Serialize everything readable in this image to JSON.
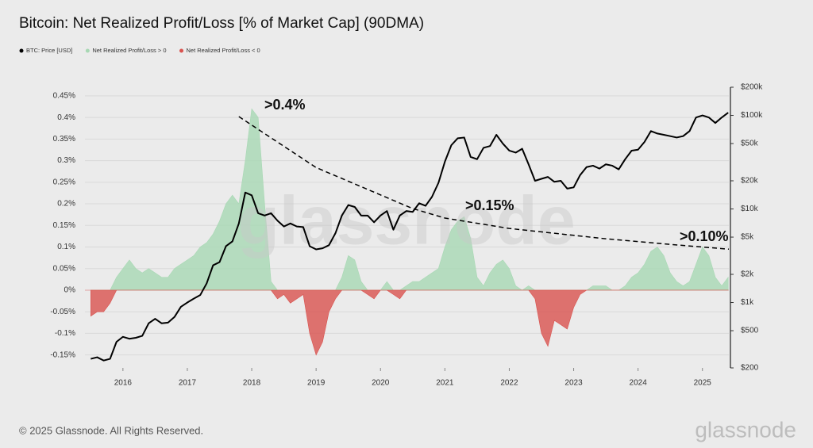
{
  "chart_data": {
    "type": "line",
    "title": "Bitcoin: Net Realized Profit/Loss [% of Market Cap] (90DMA)",
    "watermark": "glassnode",
    "annotations": [
      ">0.4%",
      ">0.15%",
      ">0.10%"
    ],
    "xlim": [
      2015.41,
      2025.41
    ],
    "xticks": [
      2016,
      2017,
      2018,
      2019,
      2020,
      2021,
      2022,
      2023,
      2024,
      2025
    ],
    "ylim": [
      -0.18,
      0.47
    ],
    "yticks": [
      {
        "value": -0.15,
        "label": "-0.15%"
      },
      {
        "value": -0.1,
        "label": "-0.1%"
      },
      {
        "value": -0.05,
        "label": "-0.05%"
      },
      {
        "value": 0,
        "label": "0%"
      },
      {
        "value": 0.05,
        "label": "0.05%"
      },
      {
        "value": 0.1,
        "label": "0.1%"
      },
      {
        "value": 0.15,
        "label": "0.15%"
      },
      {
        "value": 0.2,
        "label": "0.2%"
      },
      {
        "value": 0.25,
        "label": "0.25%"
      },
      {
        "value": 0.3,
        "label": "0.3%"
      },
      {
        "value": 0.35,
        "label": "0.35%"
      },
      {
        "value": 0.4,
        "label": "0.4%"
      },
      {
        "value": 0.45,
        "label": "0.45%"
      }
    ],
    "y2lim": [
      200,
      200000
    ],
    "y2scale": "log",
    "y2ticks": [
      {
        "value": 200,
        "label": "$200"
      },
      {
        "value": 500,
        "label": "$500"
      },
      {
        "value": 1000,
        "label": "$1k"
      },
      {
        "value": 2000,
        "label": "$2k"
      },
      {
        "value": 5000,
        "label": "$5k"
      },
      {
        "value": 10000,
        "label": "$10k"
      },
      {
        "value": 20000,
        "label": "$20k"
      },
      {
        "value": 50000,
        "label": "$50k"
      },
      {
        "value": 100000,
        "label": "$100k"
      },
      {
        "value": 200000,
        "label": "$200k"
      }
    ],
    "grid": true,
    "legend": "top-left",
    "x": [
      2015.5,
      2015.6,
      2015.7,
      2015.8,
      2015.9,
      2016.0,
      2016.1,
      2016.2,
      2016.3,
      2016.4,
      2016.5,
      2016.6,
      2016.7,
      2016.8,
      2016.9,
      2017.0,
      2017.1,
      2017.2,
      2017.3,
      2017.4,
      2017.5,
      2017.6,
      2017.7,
      2017.8,
      2017.9,
      2018.0,
      2018.1,
      2018.2,
      2018.3,
      2018.4,
      2018.5,
      2018.6,
      2018.7,
      2018.8,
      2018.9,
      2019.0,
      2019.1,
      2019.2,
      2019.3,
      2019.4,
      2019.5,
      2019.6,
      2019.7,
      2019.8,
      2019.9,
      2020.0,
      2020.1,
      2020.2,
      2020.3,
      2020.4,
      2020.5,
      2020.6,
      2020.7,
      2020.8,
      2020.9,
      2021.0,
      2021.1,
      2021.2,
      2021.3,
      2021.4,
      2021.5,
      2021.6,
      2021.7,
      2021.8,
      2021.9,
      2022.0,
      2022.1,
      2022.2,
      2022.3,
      2022.4,
      2022.5,
      2022.6,
      2022.7,
      2022.8,
      2022.9,
      2023.0,
      2023.1,
      2023.2,
      2023.3,
      2023.4,
      2023.5,
      2023.6,
      2023.7,
      2023.8,
      2023.9,
      2024.0,
      2024.1,
      2024.2,
      2024.3,
      2024.4,
      2024.5,
      2024.6,
      2024.7,
      2024.8,
      2024.9,
      2025.0,
      2025.1,
      2025.2,
      2025.3,
      2025.4
    ],
    "series": [
      {
        "name": "BTC: Price [USD]",
        "color": "#000000",
        "type": "line",
        "axis": "y2",
        "values": [
          250,
          260,
          240,
          250,
          380,
          430,
          410,
          420,
          440,
          600,
          670,
          600,
          610,
          700,
          900,
          1000,
          1100,
          1200,
          1600,
          2500,
          2700,
          4000,
          4500,
          7000,
          15000,
          14000,
          9000,
          8500,
          9000,
          7500,
          6500,
          7000,
          6500,
          6400,
          4000,
          3700,
          3800,
          4100,
          5500,
          8500,
          11000,
          10500,
          8500,
          8500,
          7200,
          8500,
          9500,
          6000,
          8500,
          9500,
          9300,
          11500,
          10800,
          13500,
          19000,
          32000,
          48000,
          57000,
          58000,
          36000,
          34000,
          45000,
          47000,
          62000,
          50000,
          42000,
          40000,
          44000,
          30000,
          20000,
          21000,
          22000,
          19500,
          20000,
          16500,
          17000,
          23000,
          28000,
          29000,
          27000,
          30000,
          29000,
          26500,
          34000,
          42000,
          43000,
          52000,
          68000,
          64000,
          62000,
          60000,
          58000,
          60000,
          68000,
          95000,
          100000,
          95000,
          83000,
          95000,
          107000
        ]
      },
      {
        "name": "Net Realized Profit/Loss > 0",
        "color": "#a8d8b4",
        "type": "area",
        "values": [
          0,
          0,
          0,
          0,
          0.03,
          0.05,
          0.07,
          0.05,
          0.04,
          0.05,
          0.04,
          0.03,
          0.03,
          0.05,
          0.06,
          0.07,
          0.08,
          0.1,
          0.11,
          0.13,
          0.16,
          0.2,
          0.22,
          0.2,
          0.3,
          0.42,
          0.4,
          0.2,
          0.02,
          0,
          0,
          0,
          0,
          0,
          0,
          0,
          0,
          0,
          0,
          0.03,
          0.08,
          0.07,
          0.02,
          0,
          0,
          0,
          0.02,
          0,
          0,
          0.01,
          0.02,
          0.02,
          0.03,
          0.04,
          0.05,
          0.1,
          0.14,
          0.16,
          0.17,
          0.12,
          0.03,
          0.01,
          0.04,
          0.06,
          0.07,
          0.05,
          0.01,
          0,
          0.01,
          0,
          0,
          0,
          0,
          0,
          0,
          0,
          0,
          0,
          0.01,
          0.01,
          0.01,
          0,
          0,
          0.01,
          0.03,
          0.04,
          0.06,
          0.09,
          0.1,
          0.08,
          0.04,
          0.02,
          0.01,
          0.02,
          0.06,
          0.1,
          0.08,
          0.03,
          0.01,
          0.03
        ]
      },
      {
        "name": "Net Realized Profit/Loss < 0",
        "color": "#d9534f",
        "type": "area",
        "values": [
          -0.06,
          -0.05,
          -0.05,
          -0.03,
          0,
          0,
          0,
          0,
          0,
          0,
          0,
          0,
          0,
          0,
          0,
          0,
          0,
          0,
          0,
          0,
          0,
          0,
          0,
          0,
          0,
          0,
          0,
          0,
          0,
          -0.02,
          -0.01,
          -0.03,
          -0.02,
          -0.01,
          -0.1,
          -0.15,
          -0.12,
          -0.05,
          -0.02,
          0,
          0,
          0,
          0,
          -0.01,
          -0.02,
          0,
          0,
          -0.01,
          -0.02,
          0,
          0,
          0,
          0,
          0,
          0,
          0,
          0,
          0,
          0,
          0,
          0,
          0,
          0,
          0,
          0,
          0,
          0,
          0,
          0,
          -0.02,
          -0.1,
          -0.13,
          -0.07,
          -0.08,
          -0.09,
          -0.04,
          -0.01,
          0,
          0,
          0,
          0,
          0,
          0,
          0,
          0,
          0,
          0,
          0,
          0,
          0,
          0,
          0,
          0,
          0,
          0,
          0,
          0,
          0,
          0,
          0
        ]
      }
    ],
    "trend": {
      "x": [
        2017.8,
        2019,
        2020.5,
        2021,
        2022,
        2023.5,
        2024.5,
        2025.41
      ],
      "values": [
        0.402,
        0.284,
        0.189,
        0.167,
        0.143,
        0.119,
        0.106,
        0.095
      ],
      "color": "#000000",
      "dashed": true
    }
  },
  "footer": {
    "copyright": "© 2025 Glassnode. All Rights Reserved.",
    "logo": "glassnode"
  }
}
